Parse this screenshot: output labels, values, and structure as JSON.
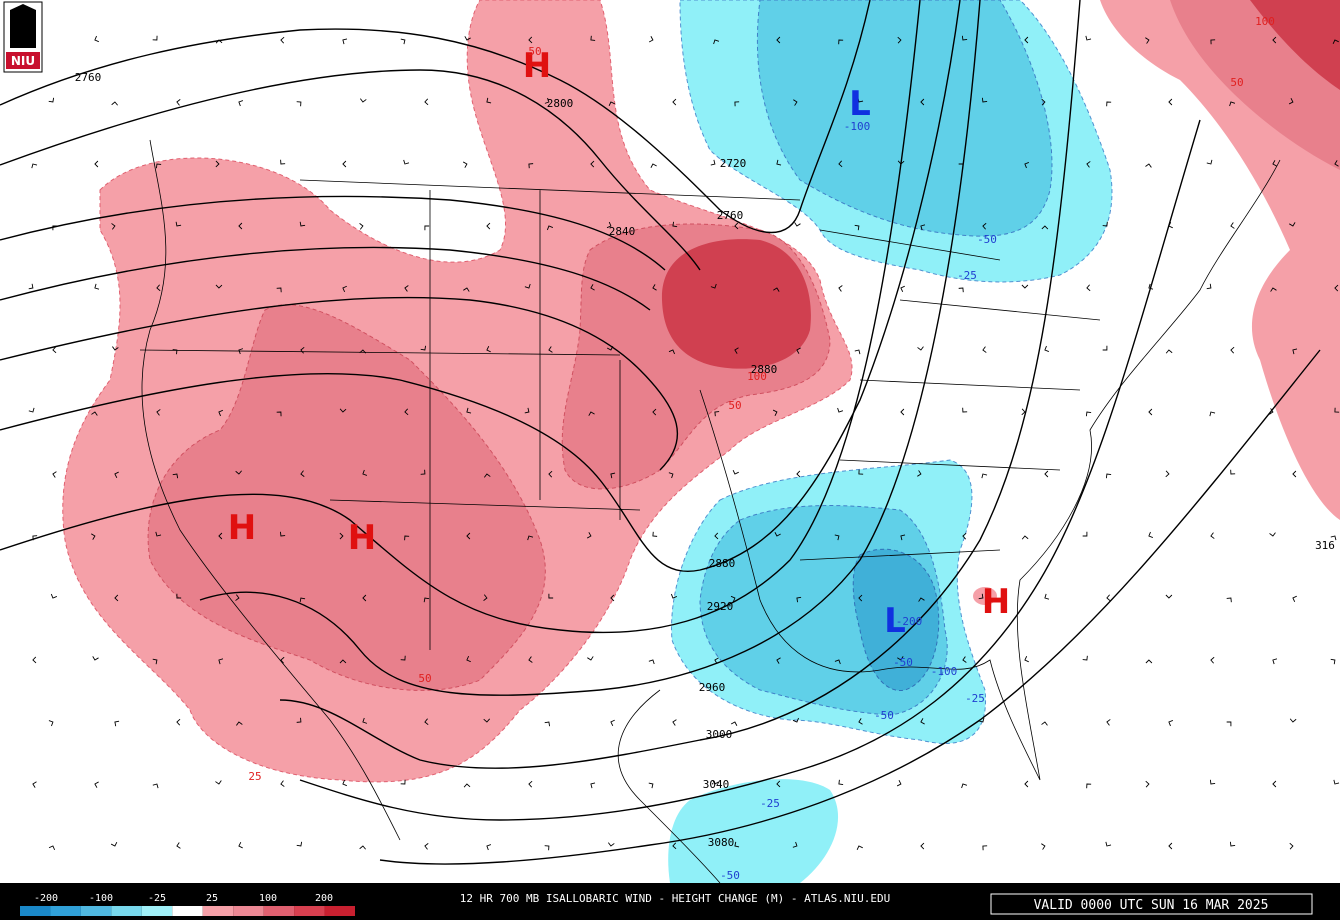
{
  "logo": "NIU",
  "title": "12 HR 700 MB ISALLOBARIC WIND - HEIGHT CHANGE (M) - ATLAS.NIU.EDU",
  "valid": "VALID 0000 UTC SUN 16 MAR 2025",
  "legend": [
    "-200",
    "-100",
    "-25",
    "25",
    "100",
    "200"
  ],
  "centers": [
    "H",
    "L",
    "H",
    "H",
    "L",
    "H"
  ],
  "height_labels": [
    "2760",
    "2800",
    "2840",
    "2720",
    "2760",
    "2880",
    "2880",
    "2920",
    "2960",
    "3000",
    "3040",
    "3080",
    "316"
  ],
  "change_labels": [
    "50",
    "100",
    "50",
    "100",
    "50",
    "50",
    "25",
    "-100",
    "-50",
    "-25",
    "-200",
    "-50",
    "-100",
    "-25",
    "-50",
    "-25",
    "-50"
  ]
}
